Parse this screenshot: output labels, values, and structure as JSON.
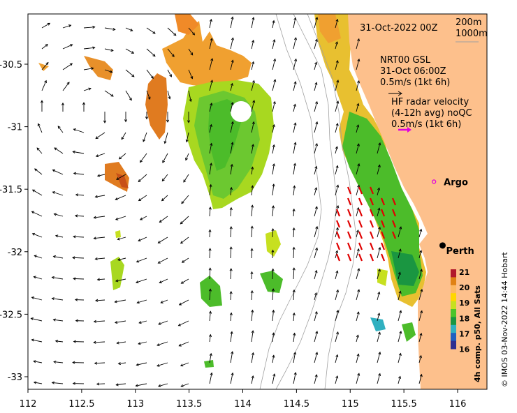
{
  "map": {
    "date_label": "31-Oct-2022 00Z",
    "depth_labels": [
      "200m",
      "1000m"
    ],
    "model": {
      "name": "NRT00 GSL",
      "time": "31-Oct 06:00Z",
      "scale": "0.5m/s (1kt 6h)"
    },
    "radar": {
      "title": "HF radar velocity",
      "subtitle": "(4-12h avg) noQC",
      "scale": "0.5m/s (1kt 6h)"
    },
    "places": [
      {
        "name": "Argo",
        "lon": 115.78,
        "lat": -31.44
      },
      {
        "name": "Perth",
        "lon": 115.86,
        "lat": -31.95
      }
    ],
    "colorbar": {
      "title": "4h comp. p50, All Sats",
      "ticks": [
        "21",
        "20",
        "19",
        "18",
        "17",
        "16"
      ],
      "colors": [
        "#b2182b",
        "#e08214",
        "#fdb863",
        "#ffd700",
        "#c7e020",
        "#4cc42a",
        "#1a9641",
        "#30b0c0",
        "#2060c0",
        "#303090"
      ]
    },
    "credit": "© IMOS 03-Nov-2022 14:44 Hobart",
    "x_ticks": [
      "112",
      "112.5",
      "113",
      "113.5",
      "114",
      "114.5",
      "115",
      "115.5",
      "116"
    ],
    "y_ticks": [
      "-30.5",
      "-31",
      "-31.5",
      "-32",
      "-32.5",
      "-33"
    ],
    "land_color": "#fdc08c",
    "model_arrow_color": "#000000",
    "radar_arrow_color": "#e00000",
    "scale_arrow_color": "#e000e0"
  }
}
